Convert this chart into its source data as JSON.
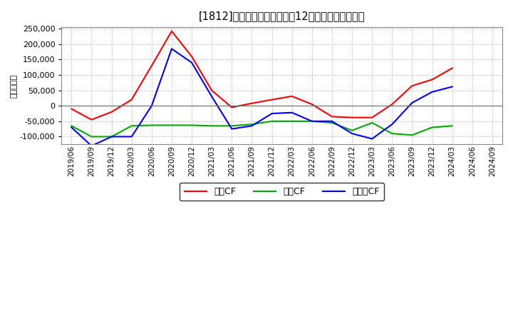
{
  "title": "[1812]　キャッシュフローの12か月移動合計の推移",
  "ylabel": "（百万円）",
  "background_color": "#ffffff",
  "plot_bg_color": "#ffffff",
  "grid_color": "#aaaaaa",
  "x_labels": [
    "2019/06",
    "2019/09",
    "2019/12",
    "2020/03",
    "2020/06",
    "2020/09",
    "2020/12",
    "2021/03",
    "2021/06",
    "2021/09",
    "2021/12",
    "2022/03",
    "2022/06",
    "2022/09",
    "2022/12",
    "2023/03",
    "2023/06",
    "2023/09",
    "2023/12",
    "2024/03",
    "2024/06",
    "2024/09"
  ],
  "operating_cf": [
    -10000,
    -45000,
    -20000,
    20000,
    130000,
    242000,
    160000,
    50000,
    -5000,
    8000,
    20000,
    31000,
    5000,
    -35000,
    -38000,
    -38000,
    5000,
    65000,
    85000,
    122000,
    null,
    null
  ],
  "investing_cf": [
    -65000,
    -100000,
    -100000,
    -65000,
    -63000,
    -63000,
    -63000,
    -65000,
    -65000,
    -60000,
    -50000,
    -50000,
    -50000,
    -55000,
    -80000,
    -55000,
    -90000,
    -95000,
    -70000,
    -65000,
    null,
    null
  ],
  "free_cf": [
    -70000,
    -130000,
    -100000,
    -100000,
    0,
    185000,
    140000,
    30000,
    -75000,
    -65000,
    -25000,
    -22000,
    -50000,
    -50000,
    -90000,
    -107000,
    -60000,
    10000,
    45000,
    62000,
    null,
    null
  ],
  "operating_color": "#ff0000",
  "investing_color": "#00aa00",
  "free_color": "#0000ff",
  "legend_labels": [
    "営業CF",
    "投資CF",
    "フリーCF"
  ],
  "ylim": [
    -125000,
    255000
  ],
  "yticks": [
    -100000,
    -50000,
    0,
    50000,
    100000,
    150000,
    200000,
    250000
  ]
}
